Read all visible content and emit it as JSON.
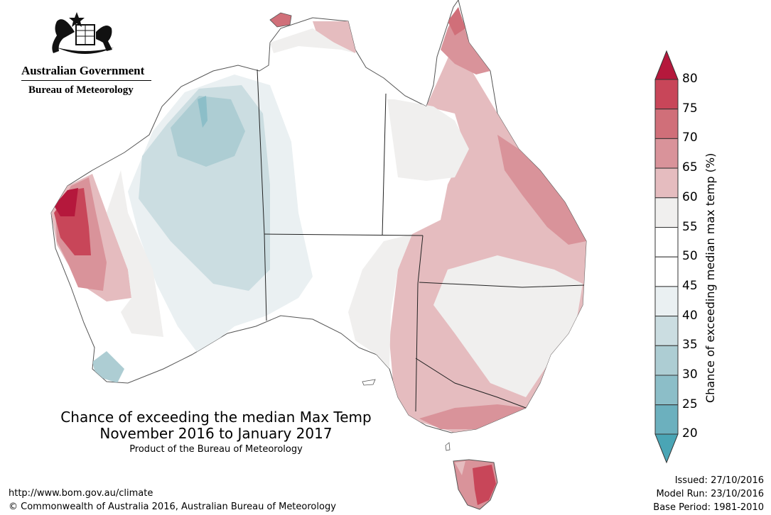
{
  "header": {
    "agency_line1": "Australian Government",
    "agency_line2": "Bureau of Meteorology"
  },
  "map": {
    "title_line1": "Chance of exceeding the median Max Temp",
    "title_line2": "November 2016 to January 2017",
    "subtitle": "Product of the Bureau of Meteorology"
  },
  "legend": {
    "label": "Chance of exceeding median max temp (%)",
    "ticks": [
      "80",
      "75",
      "70",
      "65",
      "60",
      "55",
      "50",
      "45",
      "40",
      "35",
      "30",
      "25",
      "20"
    ],
    "colors": {
      "above_80": "#b5183c",
      "75_80": "#c84659",
      "70_75": "#d06f79",
      "65_70": "#d9939a",
      "60_65": "#e5bcbf",
      "55_60": "#f0efee",
      "50_55": "#ffffff",
      "45_50": "#eaf0f2",
      "40_45": "#cbdde1",
      "35_40": "#adcdd3",
      "30_35": "#8cbec8",
      "25_30": "#6cb0be",
      "below_25": "#4aa5b5"
    }
  },
  "footer": {
    "url": "http://www.bom.gov.au/climate",
    "copyright": "© Commonwealth of Australia 2016, Australian Bureau of Meteorology",
    "issued": "Issued: 27/10/2016",
    "model_run": "Model Run: 23/10/2016",
    "base_period": "Base Period: 1981-2010"
  }
}
